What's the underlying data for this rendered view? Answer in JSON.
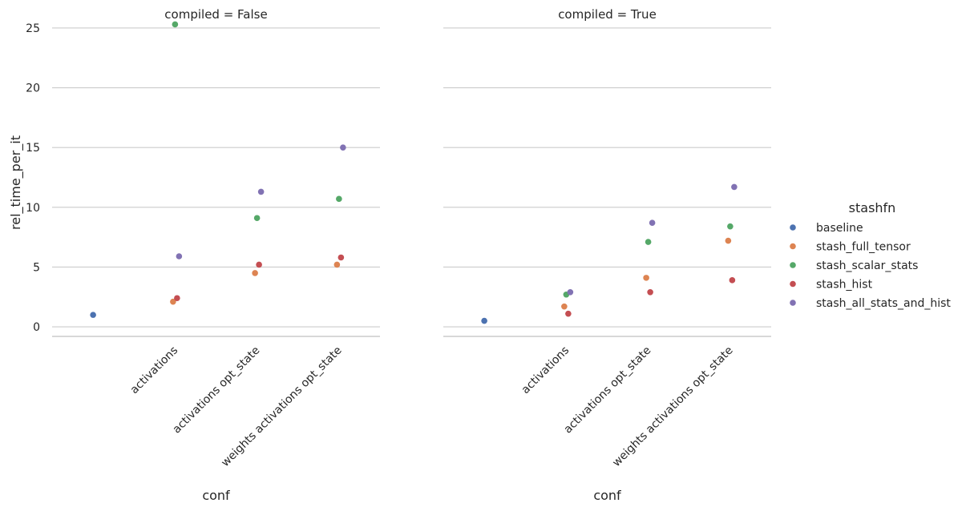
{
  "chart_data": {
    "type": "scatter",
    "ylabel": "rel_time_per_it",
    "xlabel": "conf",
    "yticks": [
      0,
      5,
      10,
      15,
      20,
      25
    ],
    "ylim": [
      -0.8,
      26
    ],
    "categories": [
      "",
      "activations",
      "activations opt_state",
      "weights activations opt_state"
    ],
    "grid": "horizontal",
    "legend": {
      "title": "stashfn",
      "placement": "right",
      "items": [
        {
          "name": "baseline",
          "color": "#4c72b0"
        },
        {
          "name": "stash_full_tensor",
          "color": "#dd8452"
        },
        {
          "name": "stash_scalar_stats",
          "color": "#55a868"
        },
        {
          "name": "stash_hist",
          "color": "#c44e52"
        },
        {
          "name": "stash_all_stats_and_hist",
          "color": "#8172b3"
        }
      ]
    },
    "panels": [
      {
        "title": "compiled = False",
        "series": [
          {
            "name": "baseline",
            "points": [
              {
                "x": "",
                "y": 1.0
              }
            ]
          },
          {
            "name": "stash_full_tensor",
            "points": [
              {
                "x": "activations",
                "y": 2.1
              },
              {
                "x": "activations opt_state",
                "y": 4.5
              },
              {
                "x": "weights activations opt_state",
                "y": 5.2
              }
            ]
          },
          {
            "name": "stash_scalar_stats",
            "points": [
              {
                "x": "activations",
                "y": 25.3
              },
              {
                "x": "activations opt_state",
                "y": 9.1
              },
              {
                "x": "weights activations opt_state",
                "y": 10.7
              }
            ]
          },
          {
            "name": "stash_hist",
            "points": [
              {
                "x": "activations",
                "y": 2.4
              },
              {
                "x": "activations opt_state",
                "y": 5.2
              },
              {
                "x": "weights activations opt_state",
                "y": 5.8
              }
            ]
          },
          {
            "name": "stash_all_stats_and_hist",
            "points": [
              {
                "x": "activations",
                "y": 5.9
              },
              {
                "x": "activations opt_state",
                "y": 11.3
              },
              {
                "x": "weights activations opt_state",
                "y": 15.0
              }
            ]
          }
        ]
      },
      {
        "title": "compiled = True",
        "series": [
          {
            "name": "baseline",
            "points": [
              {
                "x": "",
                "y": 0.5
              }
            ]
          },
          {
            "name": "stash_full_tensor",
            "points": [
              {
                "x": "activations",
                "y": 1.7
              },
              {
                "x": "activations opt_state",
                "y": 4.1
              },
              {
                "x": "weights activations opt_state",
                "y": 7.2
              }
            ]
          },
          {
            "name": "stash_scalar_stats",
            "points": [
              {
                "x": "activations",
                "y": 2.7
              },
              {
                "x": "activations opt_state",
                "y": 7.1
              },
              {
                "x": "weights activations opt_state",
                "y": 8.4
              }
            ]
          },
          {
            "name": "stash_hist",
            "points": [
              {
                "x": "activations",
                "y": 1.1
              },
              {
                "x": "activations opt_state",
                "y": 2.9
              },
              {
                "x": "weights activations opt_state",
                "y": 3.9
              }
            ]
          },
          {
            "name": "stash_all_stats_and_hist",
            "points": [
              {
                "x": "activations",
                "y": 2.9
              },
              {
                "x": "activations opt_state",
                "y": 8.7
              },
              {
                "x": "weights activations opt_state",
                "y": 11.7
              }
            ]
          }
        ]
      }
    ]
  }
}
